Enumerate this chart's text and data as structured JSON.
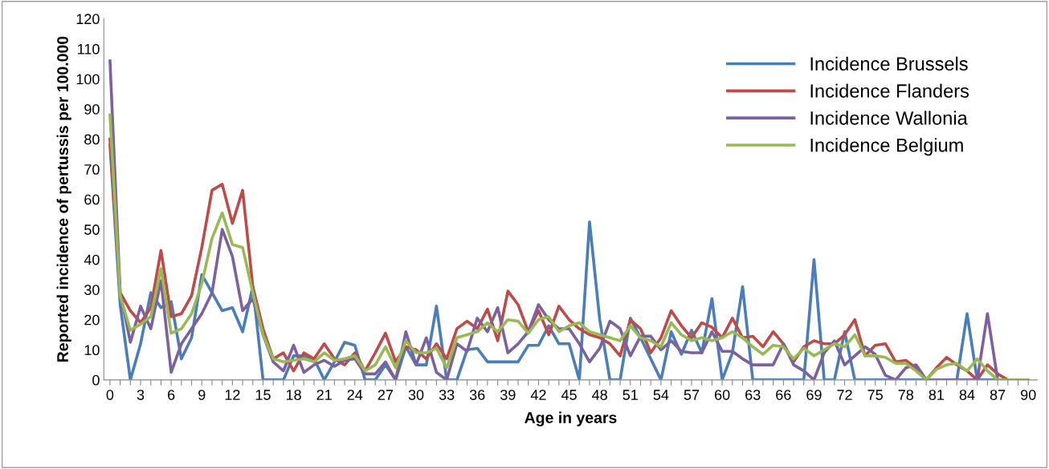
{
  "chart_data": {
    "type": "line",
    "xlabel": "Age in years",
    "ylabel": "Reported incidence of pertussis per 100.000",
    "categories": [
      "0",
      null,
      null,
      "3",
      null,
      null,
      "6",
      null,
      null,
      "9",
      null,
      null,
      "12",
      null,
      null,
      "15",
      null,
      null,
      "18",
      null,
      null,
      "21",
      null,
      null,
      "24",
      null,
      null,
      "27",
      null,
      null,
      "30",
      null,
      null,
      "33",
      null,
      null,
      "36",
      null,
      null,
      "39",
      null,
      null,
      "42",
      null,
      null,
      "45",
      null,
      null,
      "48",
      null,
      null,
      "51",
      null,
      null,
      "54",
      null,
      null,
      "57",
      null,
      null,
      "60",
      null,
      null,
      "63",
      null,
      null,
      "66",
      null,
      null,
      "69",
      null,
      null,
      "72",
      null,
      null,
      "75",
      null,
      null,
      "78",
      null,
      null,
      "81",
      null,
      null,
      "84",
      null,
      null,
      "87",
      null,
      null,
      "90"
    ],
    "ylim": [
      0,
      120
    ],
    "yticks": [
      0,
      10,
      20,
      30,
      40,
      50,
      60,
      70,
      80,
      90,
      100,
      110,
      120
    ],
    "grid": false,
    "legend": "top right",
    "marker": "none",
    "line_style": "solid",
    "series": [
      {
        "name": "Incidence Brussels",
        "color": "#4a7ebb",
        "values": [
          78,
          25,
          0,
          12,
          29,
          24,
          26,
          7,
          14,
          35,
          29,
          23,
          24,
          16,
          31,
          0,
          0,
          0,
          8,
          8,
          7,
          0,
          6,
          12.5,
          11.5,
          0,
          0,
          5,
          0,
          11,
          5,
          5,
          24.5,
          0,
          0,
          10,
          10.5,
          6,
          6,
          6,
          6,
          11.5,
          11.5,
          18,
          12,
          12,
          0,
          52.5,
          20,
          0,
          0,
          20.5,
          14,
          7,
          0,
          16,
          8.5,
          16.5,
          9,
          27,
          0,
          9,
          31,
          0,
          0,
          0,
          0,
          0,
          0,
          40,
          0,
          0,
          16,
          0,
          0,
          0,
          0,
          0,
          0,
          0,
          0,
          0,
          0,
          0,
          22,
          0,
          0,
          0,
          0,
          null,
          null
        ]
      },
      {
        "name": "Incidence Flanders",
        "color": "#be4b48",
        "values": [
          80,
          29,
          23,
          19,
          24,
          43,
          21,
          22,
          28,
          44,
          63,
          65,
          52,
          63,
          31,
          17,
          7,
          9,
          3,
          9,
          7,
          12,
          7,
          5,
          9,
          3,
          9,
          15.5,
          6,
          11,
          10,
          7,
          12,
          7,
          17,
          19.5,
          17,
          23.5,
          13,
          29.5,
          25,
          16,
          23,
          15,
          24.5,
          20,
          17,
          15,
          14,
          12,
          8,
          20,
          17,
          9,
          14,
          23,
          18,
          14,
          19,
          17.5,
          14,
          20.5,
          14,
          14.5,
          11,
          16,
          12,
          6,
          11,
          13,
          12,
          12,
          15,
          20,
          8,
          11.5,
          12,
          6,
          6.5,
          4,
          0,
          4,
          7.5,
          5,
          3,
          0,
          5,
          2,
          0,
          0,
          0
        ]
      },
      {
        "name": "Incidence Wallonia",
        "color": "#7d60a0",
        "values": [
          106,
          29,
          12.5,
          24.5,
          17,
          33,
          2.5,
          12,
          17,
          22,
          29,
          50,
          41,
          23,
          27,
          15,
          6,
          3,
          11.5,
          2.5,
          5,
          6.5,
          4.5,
          6.5,
          7,
          2,
          2,
          6,
          0,
          16,
          5,
          14,
          2.5,
          0,
          12,
          9.5,
          20.5,
          16,
          24,
          9,
          12,
          16,
          25,
          20,
          17,
          17,
          12,
          6,
          10.5,
          19.5,
          17,
          8,
          14.5,
          14.5,
          10,
          13,
          9.5,
          9,
          9,
          16,
          9.5,
          9.5,
          7,
          5,
          5,
          5,
          12,
          5,
          3,
          0,
          9,
          13,
          5,
          8,
          11,
          8.5,
          1.5,
          0,
          4,
          5,
          0,
          0,
          0,
          0,
          0,
          0,
          22,
          0,
          0,
          0,
          0
        ]
      },
      {
        "name": "Incidence Belgium",
        "color": "#98b954",
        "values": [
          88,
          28,
          16.5,
          18.5,
          21,
          37,
          15.5,
          17,
          22,
          32,
          47,
          55.5,
          45,
          44,
          29,
          15,
          7,
          6,
          6.5,
          7,
          6,
          9,
          6.5,
          7,
          8,
          3,
          5,
          11,
          4,
          13,
          9,
          9,
          10.5,
          4,
          14,
          15,
          16,
          19,
          16,
          20,
          19.5,
          15.5,
          20,
          21,
          16,
          18,
          19,
          16,
          15,
          14,
          13,
          18,
          14,
          13,
          11,
          19,
          15,
          13,
          14,
          13,
          14,
          16,
          14,
          11,
          8.5,
          11.5,
          11,
          7,
          10.5,
          8,
          10,
          12,
          11,
          15,
          8,
          8,
          7.5,
          5.5,
          5.5,
          3,
          0,
          3.5,
          5,
          5.5,
          3,
          7,
          3,
          0,
          0,
          0,
          0
        ]
      }
    ]
  }
}
